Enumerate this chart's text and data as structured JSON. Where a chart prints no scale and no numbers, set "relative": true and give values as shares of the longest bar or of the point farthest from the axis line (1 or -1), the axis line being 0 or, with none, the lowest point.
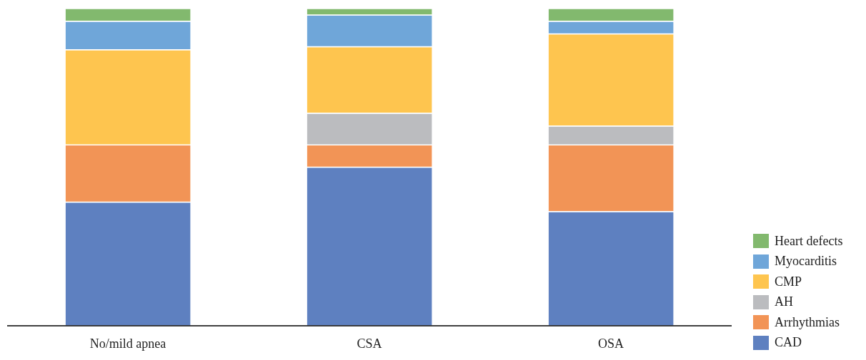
{
  "chart_data": {
    "type": "bar",
    "stacked": true,
    "relative": true,
    "legend": "right",
    "categories": [
      "No/mild apnea",
      "CSA",
      "OSA"
    ],
    "series": [
      {
        "name": "CAD",
        "color": "#5e80c0",
        "values": [
          0.39,
          0.5,
          0.36
        ]
      },
      {
        "name": "Arrhythmias",
        "color": "#f29456",
        "values": [
          0.18,
          0.07,
          0.21
        ]
      },
      {
        "name": "AH",
        "color": "#bbbcbf",
        "values": [
          0,
          0.1,
          0.06
        ]
      },
      {
        "name": "CMP",
        "color": "#fec54f",
        "values": [
          0.3,
          0.21,
          0.29
        ]
      },
      {
        "name": "Myocarditis",
        "color": "#6fa6d9",
        "values": [
          0.09,
          0.1,
          0.04
        ]
      },
      {
        "name": "Heart defects",
        "color": "#82b96e",
        "values": [
          0.04,
          0.02,
          0.04
        ]
      }
    ]
  }
}
